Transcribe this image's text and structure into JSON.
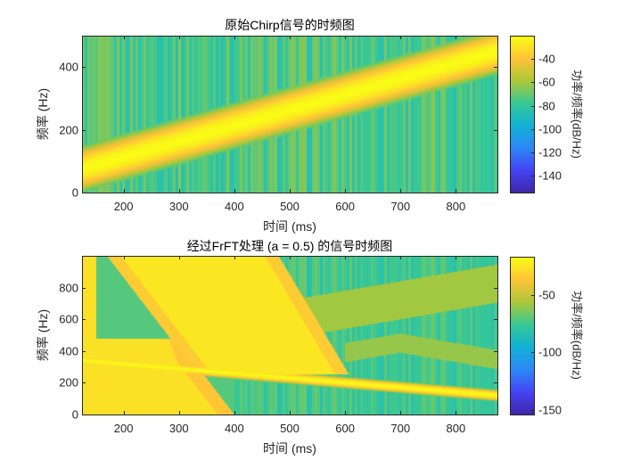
{
  "chart_data": [
    {
      "type": "heatmap",
      "title": "原始Chirp信号的时频图",
      "xlabel": "时间 (ms)",
      "ylabel": "频率 (Hz)",
      "colorbar_label": "功率/频率(dB/Hz)",
      "xlim": [
        125,
        875
      ],
      "ylim": [
        0,
        500
      ],
      "clim": [
        -155,
        -20
      ],
      "xticks": [
        "200",
        "300",
        "400",
        "500",
        "600",
        "700",
        "800"
      ],
      "yticks": [
        "0",
        "200",
        "400"
      ],
      "cticks": [
        "-40",
        "-60",
        "-80",
        "-100",
        "-120",
        "-140"
      ],
      "ridge": {
        "t_ms": [
          125,
          875
        ],
        "f_hz": [
          75,
          450
        ],
        "peak_db": -20
      },
      "background_db": -75
    },
    {
      "type": "heatmap",
      "title": "经过FrFT处理 (a = 0.5) 的信号时频图",
      "xlabel": "时间 (ms)",
      "ylabel": "频率 (Hz)",
      "colorbar_label": "功率/频率(dB/Hz)",
      "xlim": [
        125,
        875
      ],
      "ylim": [
        0,
        1000
      ],
      "clim": [
        -155,
        -17
      ],
      "xticks": [
        "200",
        "300",
        "400",
        "500",
        "600",
        "700",
        "800"
      ],
      "yticks": [
        "0",
        "200",
        "400",
        "600",
        "800"
      ],
      "cticks": [
        "-50",
        "-100",
        "-150"
      ],
      "ridge": {
        "t_ms": [
          125,
          875
        ],
        "f_hz": [
          340,
          120
        ],
        "peak_db": -18
      },
      "background_db": -80
    }
  ],
  "colormap": [
    "#3e26a8",
    "#4444f4",
    "#2d87f7",
    "#11b1d6",
    "#37c896",
    "#abc739",
    "#fec338",
    "#f9fb15"
  ]
}
